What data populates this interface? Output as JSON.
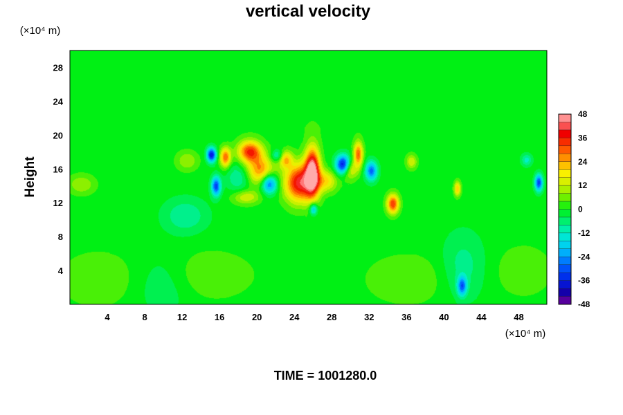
{
  "chart_data": {
    "type": "heatmap",
    "title": "vertical velocity",
    "ylabel": "Height",
    "y_unit": "(×10⁴ m)",
    "x_unit": "(×10⁴ m)",
    "xlim": [
      0,
      51
    ],
    "ylim": [
      0,
      30
    ],
    "x_ticks": [
      4,
      8,
      12,
      16,
      20,
      24,
      28,
      32,
      36,
      40,
      44,
      48
    ],
    "y_ticks": [
      4,
      8,
      12,
      16,
      20,
      24,
      28
    ],
    "colorbar": {
      "range": [
        -48,
        48
      ],
      "step": 4,
      "ticks": [
        48,
        36,
        24,
        12,
        0,
        -12,
        -24,
        -36,
        -48
      ]
    },
    "background_value": 0,
    "features": [
      {
        "x": 25.9,
        "y": 15.7,
        "value": 48,
        "sx": 0.55,
        "sy": 2.0
      },
      {
        "x": 24.5,
        "y": 14.4,
        "value": 40,
        "sx": 1.1,
        "sy": 1.6
      },
      {
        "x": 19.2,
        "y": 18.1,
        "value": 34,
        "sx": 0.9,
        "sy": 0.9
      },
      {
        "x": 20.3,
        "y": 15.9,
        "value": 26,
        "sx": 1.0,
        "sy": 1.2
      },
      {
        "x": 16.6,
        "y": 17.4,
        "value": 30,
        "sx": 0.4,
        "sy": 0.8
      },
      {
        "x": 27.4,
        "y": 14.6,
        "value": 18,
        "sx": 0.8,
        "sy": 0.9
      },
      {
        "x": 30.8,
        "y": 17.8,
        "value": 30,
        "sx": 0.35,
        "sy": 1.0
      },
      {
        "x": 29.8,
        "y": 16.0,
        "value": 22,
        "sx": 0.6,
        "sy": 0.8
      },
      {
        "x": 34.5,
        "y": 11.9,
        "value": 34,
        "sx": 0.45,
        "sy": 0.8
      },
      {
        "x": 41.4,
        "y": 13.7,
        "value": 22,
        "sx": 0.25,
        "sy": 0.6
      },
      {
        "x": 23.0,
        "y": 17.2,
        "value": 22,
        "sx": 0.5,
        "sy": 0.7
      },
      {
        "x": 18.8,
        "y": 12.7,
        "value": 14,
        "sx": 1.0,
        "sy": 0.6
      },
      {
        "x": 36.5,
        "y": 16.9,
        "value": 14,
        "sx": 0.4,
        "sy": 0.6
      },
      {
        "x": 12.5,
        "y": 17.0,
        "value": 10,
        "sx": 0.8,
        "sy": 0.8
      },
      {
        "x": 1.2,
        "y": 14.2,
        "value": 10,
        "sx": 1.0,
        "sy": 0.8
      },
      {
        "x": 29.2,
        "y": 16.5,
        "value": -44,
        "sx": 0.55,
        "sy": 0.8
      },
      {
        "x": 15.1,
        "y": 17.7,
        "value": -38,
        "sx": 0.35,
        "sy": 0.6
      },
      {
        "x": 15.6,
        "y": 14.0,
        "value": -32,
        "sx": 0.35,
        "sy": 0.8
      },
      {
        "x": 21.3,
        "y": 14.3,
        "value": -30,
        "sx": 0.6,
        "sy": 0.8
      },
      {
        "x": 32.2,
        "y": 15.8,
        "value": -28,
        "sx": 0.45,
        "sy": 0.8
      },
      {
        "x": 50.1,
        "y": 14.4,
        "value": -32,
        "sx": 0.3,
        "sy": 0.7
      },
      {
        "x": 26.0,
        "y": 11.3,
        "value": -22,
        "sx": 0.3,
        "sy": 0.5
      },
      {
        "x": 41.9,
        "y": 2.2,
        "value": -26,
        "sx": 0.35,
        "sy": 0.8
      },
      {
        "x": 22.2,
        "y": 17.6,
        "value": -14,
        "sx": 0.5,
        "sy": 0.5
      },
      {
        "x": 12.3,
        "y": 10.5,
        "value": -10,
        "sx": 1.6,
        "sy": 1.4
      },
      {
        "x": 18.0,
        "y": 15.0,
        "value": -10,
        "sx": 0.9,
        "sy": 1.2
      },
      {
        "x": 48.8,
        "y": 17.1,
        "value": -12,
        "sx": 0.4,
        "sy": 0.5
      },
      {
        "x": 10.0,
        "y": 2.5,
        "value": -6,
        "sx": 2.2,
        "sy": 2.5
      },
      {
        "x": 42.0,
        "y": 4.5,
        "value": -8,
        "sx": 1.6,
        "sy": 2.8
      },
      {
        "x": 3.0,
        "y": 3.0,
        "value": 6,
        "sx": 2.8,
        "sy": 2.2
      },
      {
        "x": 14.5,
        "y": 3.5,
        "value": 6,
        "sx": 3.5,
        "sy": 2.0
      },
      {
        "x": 36.0,
        "y": 3.0,
        "value": 6,
        "sx": 3.0,
        "sy": 2.0
      },
      {
        "x": 48.5,
        "y": 4.0,
        "value": 6,
        "sx": 2.0,
        "sy": 2.0
      },
      {
        "x": 26.0,
        "y": 22.0,
        "value": 2,
        "sx": 6.0,
        "sy": 1.5
      }
    ]
  },
  "footer": {
    "time_label": "TIME = 1001280.0"
  }
}
